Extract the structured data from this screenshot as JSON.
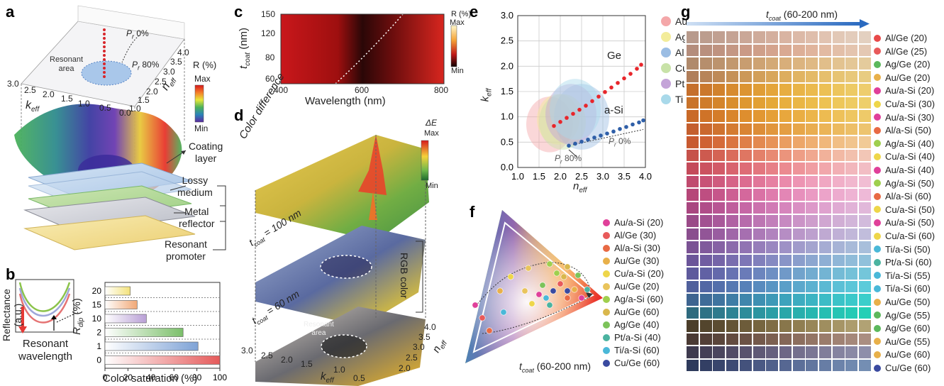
{
  "panels": {
    "a": {
      "label": "a",
      "pr0": "P",
      "pr0_sub": "r",
      "pr0_val": " 0%",
      "pr80": "P",
      "pr80_sub": "r",
      "pr80_val": " 80%",
      "resonant": [
        "Resonant",
        "area"
      ],
      "keff": "k",
      "keff_sub": "eff",
      "neff": "n",
      "neff_sub": "eff",
      "rbar_title": "R (%)",
      "max": "Max",
      "min": "Min",
      "k_ticks": [
        "3.0",
        "2.5",
        "2.0",
        "1.5",
        "1.0",
        "0.5",
        "0.0"
      ],
      "n_ticks": [
        "4.0",
        "3.5",
        "3.0",
        "2.5",
        "2.0",
        "1.5",
        "1.0"
      ],
      "layers": [
        [
          "Coating",
          "layer"
        ],
        [
          "Lossy",
          "medium"
        ],
        [
          "Metal",
          "reflector"
        ],
        [
          "Resonant",
          "promoter"
        ]
      ]
    },
    "b": {
      "label": "b",
      "reflectance": "Reflectance (a.u.)",
      "resonant_wl": [
        "Resonant",
        "wavelength"
      ],
      "rdip": "R",
      "rdip_sub": "dip",
      "rdip_unit": " (%)",
      "xlabel": "Color saturation (%)",
      "x_ticks": [
        "0",
        "20",
        "40",
        "60",
        "80",
        "100"
      ]
    },
    "c": {
      "label": "c",
      "xlabel": "Wavelength (nm)",
      "ylabel": "t",
      "ylabel_sub": "coat",
      "ylabel_unit": " (nm)",
      "x_ticks": [
        "400",
        "600",
        "800"
      ],
      "y_ticks": [
        "150",
        "120",
        "80",
        "60"
      ],
      "rbar": "R (%)",
      "max": "Max",
      "min": "Min"
    },
    "d": {
      "label": "d",
      "color_diff": "Color difference",
      "de": "ΔE",
      "max": "Max",
      "min": "Min",
      "tcoat100": "t",
      "tcoat100_sub": "coat",
      "tcoat100_val": " = 100 nm",
      "tcoat60": "t",
      "tcoat60_sub": "coat",
      "tcoat60_val": " = 60 nm",
      "rgb": "RGB color",
      "resonant": [
        "Resonant",
        "area"
      ],
      "k_ticks": [
        "3.0",
        "2.5",
        "2.0",
        "1.5",
        "1.0",
        "0.5"
      ],
      "n_ticks": [
        "4.0",
        "3.5",
        "3.0",
        "2.5",
        "2.0"
      ],
      "keff": "k",
      "keff_sub": "eff",
      "neff": "n",
      "neff_sub": "eff"
    },
    "e": {
      "label": "e",
      "xlabel": "n",
      "xlabel_sub": "eff",
      "ylabel": "k",
      "ylabel_sub": "eff",
      "ge": "Ge",
      "asi": "a-Si",
      "pr0": "P",
      "pr0_sub": "r",
      "pr0_val": " 0%",
      "pr80": "P",
      "pr80_sub": "r",
      "pr80_val": " 80%"
    },
    "f": {
      "label": "f",
      "tcoat": "t",
      "tcoat_sub": "coat",
      "tcoat_val": " (60-200 nm)"
    },
    "g": {
      "label": "g",
      "title": "t",
      "title_sub": "coat",
      "title_val": " (60-200 nm)"
    }
  },
  "chart_data": [
    {
      "panel": "b",
      "type": "bar",
      "categories": [
        "20",
        "15",
        "10",
        "2",
        "1",
        "0"
      ],
      "values": [
        22,
        28,
        36,
        68,
        81,
        100
      ],
      "xlabel": "Color saturation (%)",
      "ylabel": "R_dip (%)",
      "xlim": [
        0,
        100
      ],
      "colors": [
        "#f3e27a",
        "#f1a876",
        "#b9a0d6",
        "#7bbf6a",
        "#7fa3d6",
        "#e55a5a"
      ]
    },
    {
      "panel": "c",
      "type": "heatmap",
      "xlabel": "Wavelength (nm)",
      "ylabel": "t_coat (nm)",
      "xlim": [
        400,
        800
      ],
      "ylim": [
        60,
        150
      ]
    },
    {
      "panel": "e",
      "type": "scatter",
      "xlabel": "n_eff",
      "ylabel": "k_eff",
      "xlim": [
        1.0,
        4.0
      ],
      "ylim": [
        0.0,
        3.0
      ],
      "x_ticks": [
        "1.0",
        "1.5",
        "2.0",
        "2.5",
        "3.0",
        "3.5",
        "4.0"
      ],
      "y_ticks": [
        "0.0",
        "0.5",
        "1.0",
        "1.5",
        "2.0",
        "2.5",
        "3.0"
      ],
      "series": [
        {
          "name": "Ge",
          "color": "#e8262b",
          "points": [
            [
              1.85,
              0.82
            ],
            [
              2.0,
              0.9
            ],
            [
              2.15,
              0.98
            ],
            [
              2.3,
              1.06
            ],
            [
              2.45,
              1.14
            ],
            [
              2.6,
              1.22
            ],
            [
              2.75,
              1.31
            ],
            [
              2.9,
              1.4
            ],
            [
              3.05,
              1.49
            ],
            [
              3.2,
              1.58
            ],
            [
              3.35,
              1.67
            ],
            [
              3.5,
              1.76
            ],
            [
              3.65,
              1.85
            ],
            [
              3.8,
              1.95
            ],
            [
              3.9,
              2.03
            ]
          ]
        },
        {
          "name": "a-Si",
          "color": "#2f5fa8",
          "points": [
            [
              2.2,
              0.43
            ],
            [
              2.35,
              0.47
            ],
            [
              2.5,
              0.51
            ],
            [
              2.65,
              0.55
            ],
            [
              2.8,
              0.59
            ],
            [
              2.95,
              0.63
            ],
            [
              3.1,
              0.67
            ],
            [
              3.25,
              0.71
            ],
            [
              3.4,
              0.76
            ],
            [
              3.55,
              0.8
            ],
            [
              3.7,
              0.85
            ],
            [
              3.85,
              0.89
            ],
            [
              3.95,
              0.93
            ]
          ]
        }
      ],
      "legend": [
        {
          "name": "Au",
          "color": "#f4a7a9",
          "c": [
            1.75,
            0.85
          ],
          "r": 0.55
        },
        {
          "name": "Ag",
          "color": "#f3ec9a",
          "c": [
            1.95,
            0.95
          ],
          "r": 0.5
        },
        {
          "name": "Al",
          "color": "#9bbde3",
          "c": [
            2.5,
            1.0
          ],
          "r": 0.65
        },
        {
          "name": "Cu",
          "color": "#c8e2a8",
          "c": [
            2.05,
            0.9
          ],
          "r": 0.55
        },
        {
          "name": "Pt",
          "color": "#c4a4d8",
          "c": [
            2.25,
            1.05
          ],
          "r": 0.6
        },
        {
          "name": "Ti",
          "color": "#a9d9ea",
          "c": [
            2.35,
            1.15
          ],
          "r": 0.6
        }
      ]
    }
  ],
  "legend_f": [
    {
      "label": "Au/a-Si (20)",
      "color": "#e0409a"
    },
    {
      "label": "Al/Ge (30)",
      "color": "#e85a5a"
    },
    {
      "label": "Al/a-Si (30)",
      "color": "#e86a44"
    },
    {
      "label": "Au/Ge (30)",
      "color": "#e8b04a"
    },
    {
      "label": "Cu/a-Si (20)",
      "color": "#eed64a"
    },
    {
      "label": "Au/Ge (20)",
      "color": "#e9c45c"
    },
    {
      "label": "Ag/a-Si (60)",
      "color": "#9fcf4e"
    },
    {
      "label": "Au/Ge (60)",
      "color": "#d9b74c"
    },
    {
      "label": "Ag/Ge (40)",
      "color": "#7cc35a"
    },
    {
      "label": "Pt/a-Si (40)",
      "color": "#4bb3a0"
    },
    {
      "label": "Ti/a-Si (60)",
      "color": "#4ab8d8"
    },
    {
      "label": "Cu/Ge (60)",
      "color": "#3a4aa0"
    }
  ],
  "legend_g": [
    {
      "label": "Al/Ge (20)",
      "color": "#e84a4a"
    },
    {
      "label": "Al/Ge (25)",
      "color": "#e85a5a"
    },
    {
      "label": "Ag/Ge (20)",
      "color": "#5cb85c"
    },
    {
      "label": "Au/Ge (20)",
      "color": "#e8b04a"
    },
    {
      "label": "Au/a-Si (20)",
      "color": "#e0409a"
    },
    {
      "label": "Cu/a-Si (30)",
      "color": "#eed64a"
    },
    {
      "label": "Au/a-Si (30)",
      "color": "#e0409a"
    },
    {
      "label": "Al/a-Si (50)",
      "color": "#e86a44"
    },
    {
      "label": "Ag/a-Si (40)",
      "color": "#9fcf4e"
    },
    {
      "label": "Cu/a-Si (40)",
      "color": "#eed64a"
    },
    {
      "label": "Au/a-Si (40)",
      "color": "#e0409a"
    },
    {
      "label": "Ag/a-Si (50)",
      "color": "#9fcf4e"
    },
    {
      "label": "Al/a-Si (60)",
      "color": "#e86a44"
    },
    {
      "label": "Cu/a-Si (50)",
      "color": "#eed64a"
    },
    {
      "label": "Au/a-Si (50)",
      "color": "#e0409a"
    },
    {
      "label": "Cu/a-Si (60)",
      "color": "#eed64a"
    },
    {
      "label": "Ti/a-Si (50)",
      "color": "#4ab8d8"
    },
    {
      "label": "Pt/a-Si (60)",
      "color": "#4bb3a0"
    },
    {
      "label": "Ti/a-Si (55)",
      "color": "#4ab8d8"
    },
    {
      "label": "Ti/a-Si (60)",
      "color": "#4ab8d8"
    },
    {
      "label": "Au/Ge (50)",
      "color": "#e8b04a"
    },
    {
      "label": "Ag/Ge (55)",
      "color": "#5cb85c"
    },
    {
      "label": "Ag/Ge (60)",
      "color": "#5cb85c"
    },
    {
      "label": "Au/Ge (55)",
      "color": "#e8b04a"
    },
    {
      "label": "Au/Ge (60)",
      "color": "#e8b04a"
    },
    {
      "label": "Cu/Ge (60)",
      "color": "#3a4aa0"
    }
  ],
  "swatch_rows": [
    [
      "#b89a8c",
      "#bc9d8e",
      "#c1a091",
      "#c5a394",
      "#caa797",
      "#cfab9a",
      "#d4af9e",
      "#d9b4a2",
      "#dcb9a7",
      "#dfbeac",
      "#e1c3b1",
      "#e2c8b6",
      "#e3ccbb",
      "#e3d0c0"
    ],
    [
      "#b48d7c",
      "#b9907e",
      "#bf9380",
      "#c49783",
      "#ca9a86",
      "#cf9f89",
      "#d4a38d",
      "#d9a992",
      "#ddaf97",
      "#e0b49c",
      "#e2baa2",
      "#e3bfa8",
      "#e4c4ae",
      "#e4c8b3"
    ],
    [
      "#b08a6c",
      "#b68e6c",
      "#bc936d",
      "#c2986e",
      "#c89d70",
      "#cea373",
      "#d3a976",
      "#d8ae7a",
      "#dcb47f",
      "#dfb984",
      "#e1be8a",
      "#e3c390",
      "#e4c796",
      "#e4cb9c"
    ],
    [
      "#b07e5a",
      "#b78459",
      "#be8a58",
      "#c59158",
      "#cc9858",
      "#d29f59",
      "#d8a65b",
      "#ddad5e",
      "#e1b462",
      "#e4ba67",
      "#e6bf6d",
      "#e7c473",
      "#e8c87a",
      "#e8cc81"
    ],
    [
      "#c56f2c",
      "#cb782c",
      "#d1822d",
      "#d78b2f",
      "#dc9432",
      "#e09d36",
      "#e4a53b",
      "#e7ad41",
      "#e9b447",
      "#ebba4e",
      "#ecc055",
      "#edc55d",
      "#edca65",
      "#eecd6d"
    ],
    [
      "#c9732a",
      "#cf7c2a",
      "#d4852b",
      "#d98e2d",
      "#de972f",
      "#e2a033",
      "#e5a838",
      "#e8af3e",
      "#eab644",
      "#ecbc4b",
      "#edc252",
      "#eec75a",
      "#eecb62",
      "#eecf6a"
    ],
    [
      "#c96a28",
      "#cf7328",
      "#d47c29",
      "#d9852b",
      "#de8e2e",
      "#e29732",
      "#e59f37",
      "#e8a73d",
      "#eaae43",
      "#ecb54a",
      "#edbb51",
      "#eec159",
      "#eec661",
      "#eeca69"
    ],
    [
      "#c45f2e",
      "#ca682e",
      "#cf722f",
      "#d47b31",
      "#d98434",
      "#dd8d38",
      "#e1963d",
      "#e49e43",
      "#e7a649",
      "#e9ad50",
      "#ebb457",
      "#ecba5f",
      "#edbf67",
      "#edc46f"
    ],
    [
      "#c85a30",
      "#cf6234",
      "#d56b3a",
      "#da7540",
      "#df7f48",
      "#e38950",
      "#e79358",
      "#ea9d60",
      "#eda669",
      "#efaf72",
      "#f0b77b",
      "#f1be84",
      "#f1c48d",
      "#f1ca96"
    ],
    [
      "#c6524a",
      "#cd5a4f",
      "#d46354",
      "#da6c5b",
      "#df7662",
      "#e4806a",
      "#e88a73",
      "#eb947c",
      "#ee9e86",
      "#f0a890",
      "#f1b19a",
      "#f2b9a4",
      "#f2c0ad",
      "#f2c6b6"
    ],
    [
      "#c44a5a",
      "#cb5260",
      "#d25a67",
      "#d8636e",
      "#de6c76",
      "#e3767e",
      "#e78087",
      "#eb8a90",
      "#ee9499",
      "#f09ea2",
      "#f1a7ab",
      "#f2afb4",
      "#f2b7bc",
      "#f2bdc4"
    ],
    [
      "#c04a6e",
      "#c85276",
      "#cf5a7e",
      "#d66387",
      "#dc6c90",
      "#e17699",
      "#e680a2",
      "#ea8aab",
      "#ed94b3",
      "#ef9ebb",
      "#f0a7c2",
      "#f1afc8",
      "#f1b7ce",
      "#f1bdd3"
    ],
    [
      "#b64778",
      "#be4e81",
      "#c6568a",
      "#cd5f93",
      "#d4689c",
      "#da72a5",
      "#df7cad",
      "#e386b5",
      "#e790bc",
      "#ea9ac3",
      "#eca3c9",
      "#edabce",
      "#eeb3d3",
      "#eeb9d7"
    ],
    [
      "#a94680",
      "#b04d89",
      "#b85593",
      "#bf5e9c",
      "#c667a5",
      "#cc71ad",
      "#d17bb5",
      "#d685bc",
      "#da8fc3",
      "#dd99c9",
      "#dfa2ce",
      "#e0aad3",
      "#e1b2d7",
      "#e1b8da"
    ],
    [
      "#9a4a88",
      "#a25191",
      "#a9599a",
      "#b062a3",
      "#b76bab",
      "#bd75b3",
      "#c27fba",
      "#c789c1",
      "#cb93c7",
      "#ce9dcc",
      "#d0a6d1",
      "#d1aed5",
      "#d2b5d9",
      "#d2bbdc"
    ],
    [
      "#8a4e8e",
      "#925597",
      "#995da0",
      "#a066a8",
      "#a66fb0",
      "#ac79b7",
      "#b183be",
      "#b68dc4",
      "#ba97c9",
      "#bda0ce",
      "#bfa9d2",
      "#c0b0d6",
      "#c1b7d9",
      "#c1bddc"
    ],
    [
      "#7a5294",
      "#80599c",
      "#8661a4",
      "#8c6aac",
      "#9173b3",
      "#967dba",
      "#9a87c0",
      "#9e91c6",
      "#a19bcb",
      "#a4a4cf",
      "#a6acd3",
      "#a7b3d6",
      "#a8bad9",
      "#a8bfdb"
    ],
    [
      "#6b5599",
      "#705ca1",
      "#7564a8",
      "#796daf",
      "#7d76b6",
      "#8180bc",
      "#858ac2",
      "#8894c7",
      "#8a9ecc",
      "#8ca7d0",
      "#8eafd4",
      "#8fb6d7",
      "#90bcd9",
      "#90c1db"
    ],
    [
      "#5e5a9c",
      "#6161a4",
      "#6469ab",
      "#6772b2",
      "#6a7bb8",
      "#6c85be",
      "#6e8fc3",
      "#7099c8",
      "#71a3cc",
      "#72acd0",
      "#73b4d3",
      "#74bbd6",
      "#74c1d8",
      "#74c6da"
    ],
    [
      "#50609c",
      "#5267a4",
      "#546fab",
      "#5678b2",
      "#5781b8",
      "#588bbe",
      "#5995c3",
      "#5a9fc8",
      "#5ba8cc",
      "#5bb1d0",
      "#5bb9d3",
      "#5bc0d6",
      "#5bc6d8",
      "#5bcbda"
    ],
    [
      "#3e6490",
      "#3f6c98",
      "#3f749f",
      "#3f7da6",
      "#3f86ac",
      "#3e90b2",
      "#3e99b7",
      "#3da3bc",
      "#3dacc0",
      "#3cb4c3",
      "#3cbcc6",
      "#3bc3c8",
      "#3bc9ca",
      "#3bcecb"
    ],
    [
      "#2e6a7e",
      "#2e7286",
      "#2e7a8d",
      "#2d8394",
      "#2c8c9a",
      "#2b95a0",
      "#2a9ea5",
      "#29a7a9",
      "#28afad",
      "#27b7b0",
      "#26beb2",
      "#25c4b4",
      "#24cab5",
      "#23cfb6"
    ],
    [
      "#4b3e2a",
      "#53452d",
      "#5b4c31",
      "#645435",
      "#6d5c3a",
      "#76653f",
      "#7f6d45",
      "#88764b",
      "#907e51",
      "#988658",
      "#9f8e5f",
      "#a69566",
      "#ac9c6d",
      "#b1a274"
    ],
    [
      "#4a3a34",
      "#523f37",
      "#5a453b",
      "#634b40",
      "#6b5245",
      "#74594b",
      "#7c6051",
      "#846757",
      "#8c6e5e",
      "#937565",
      "#9a7c6c",
      "#a08273",
      "#a5887a",
      "#aa8e81"
    ],
    [
      "#3e3a4e",
      "#443f56",
      "#4a455e",
      "#514b66",
      "#58526e",
      "#5f5976",
      "#66607e",
      "#6d6786",
      "#746f8d",
      "#7a7694",
      "#807d9a",
      "#8583a0",
      "#8a89a5",
      "#8e8eaa"
    ],
    [
      "#2e3a5c",
      "#333f64",
      "#38456c",
      "#3e4b74",
      "#44527c",
      "#4a5984",
      "#50608b",
      "#566792",
      "#5c6f99",
      "#62769f",
      "#677da5",
      "#6c83aa",
      "#7089af",
      "#748eb3"
    ]
  ]
}
